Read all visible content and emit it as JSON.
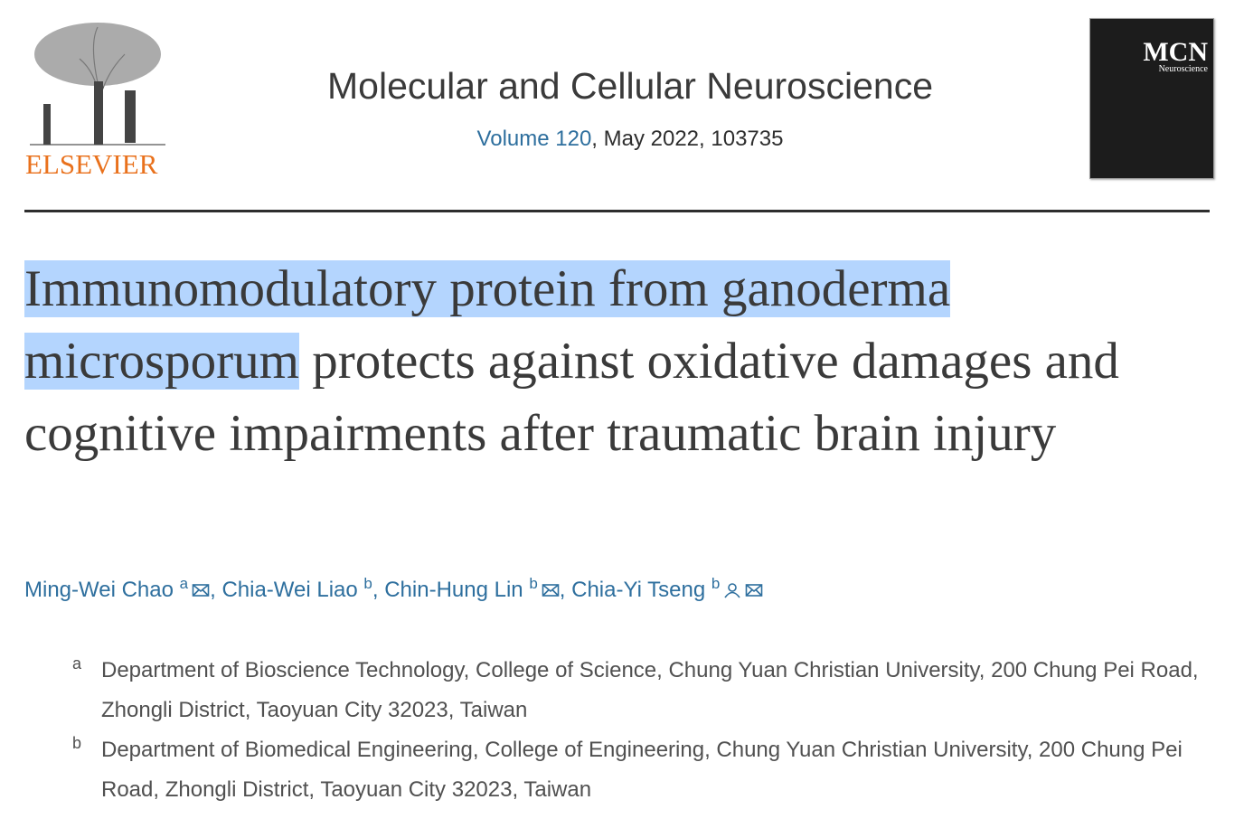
{
  "header": {
    "publisher": "ELSEVIER",
    "journal": "Molecular and Cellular Neuroscience",
    "volume_link": "Volume 120",
    "issue_info": ", May 2022, 103735",
    "cover_title": "MCN",
    "cover_subtitle": "Neuroscience"
  },
  "article": {
    "title_highlighted": "Immunomodulatory protein from ganoderma microsporum",
    "title_rest": "protects against oxidative damages and cognitive impairments after traumatic brain injury"
  },
  "authors": {
    "separator": ",",
    "list": [
      {
        "name": "Ming-Wei Chao",
        "affil": "a",
        "email": true,
        "corresponding": false
      },
      {
        "name": "Chia-Wei Liao",
        "affil": "b",
        "email": false,
        "corresponding": false
      },
      {
        "name": "Chin-Hung Lin",
        "affil": "b",
        "email": true,
        "corresponding": false
      },
      {
        "name": "Chia-Yi Tseng",
        "affil": "b",
        "email": true,
        "corresponding": true
      }
    ]
  },
  "affiliations": [
    {
      "label": "a",
      "text": "Department of Bioscience Technology, College of Science, Chung Yuan Christian University, 200 Chung Pei Road, Zhongli District, Taoyuan City 32023, Taiwan"
    },
    {
      "label": "b",
      "text": "Department of Biomedical Engineering, College of Engineering, Chung Yuan Christian University, 200 Chung Pei Road, Zhongli District, Taoyuan City 32023, Taiwan"
    }
  ]
}
